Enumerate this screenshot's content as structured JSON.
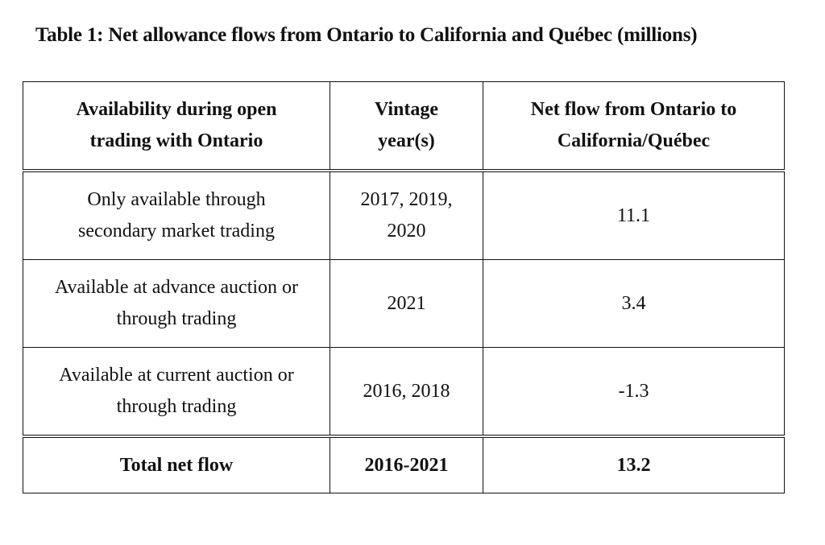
{
  "caption": "Table 1: Net allowance flows from Ontario to California and Québec (millions)",
  "table": {
    "headers": [
      [
        "Availability during open",
        "trading with Ontario"
      ],
      [
        "Vintage",
        "year(s)"
      ],
      [
        "Net flow from Ontario to",
        "California/Québec"
      ]
    ],
    "rows": [
      {
        "availability": [
          "Only available through",
          "secondary market trading"
        ],
        "vintage": [
          "2017, 2019,",
          "2020"
        ],
        "net_flow": "11.1"
      },
      {
        "availability": [
          "Available at advance auction or",
          "through trading"
        ],
        "vintage": [
          "2021"
        ],
        "net_flow": "3.4"
      },
      {
        "availability": [
          "Available at current auction or",
          "through trading"
        ],
        "vintage": [
          "2016, 2018"
        ],
        "net_flow": "-1.3"
      }
    ],
    "total": {
      "label": "Total net flow",
      "vintage": "2016-2021",
      "net_flow": "13.2"
    }
  }
}
